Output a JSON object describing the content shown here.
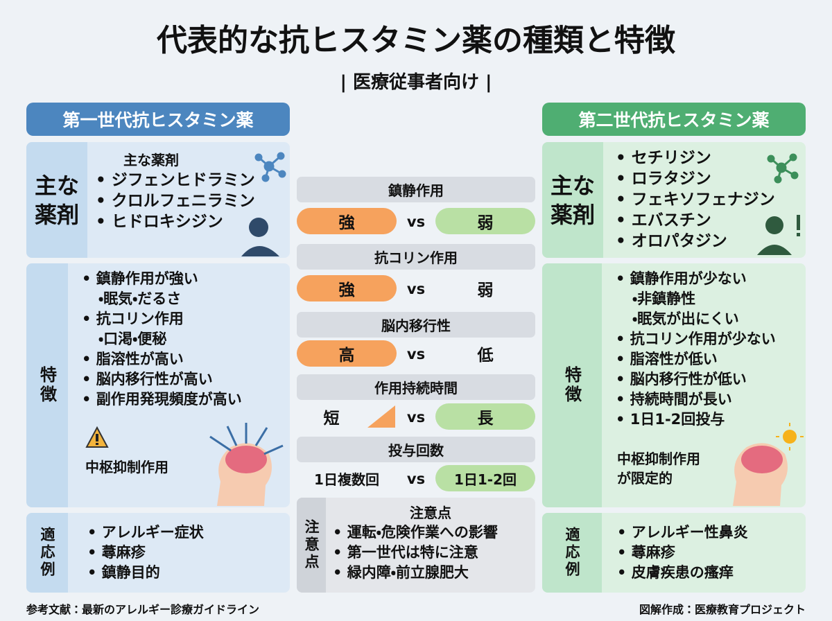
{
  "title": "代表的な抗ヒスタミン薬の種類と特徴",
  "subtitle": "| 医療従事者向け |",
  "left": {
    "header": "第一世代抗ヒスタミン薬",
    "drugs": {
      "label": [
        "主な",
        "薬剤"
      ],
      "heading": "主な薬剤",
      "items": [
        "ジフェンヒドラミン",
        "クロルフェニラミン",
        "ヒドロキシジン"
      ]
    },
    "features": {
      "label": "特徴",
      "items": [
        {
          "text": "鎮静作用が強い",
          "sub": [
            "眠気・だるさ"
          ]
        },
        {
          "text": "抗コリン作用",
          "sub": [
            "口渇・便秘"
          ]
        },
        {
          "text": "脂溶性が高い"
        },
        {
          "text": "脳内移行性が高い"
        },
        {
          "text": "副作用発現頻度が高い"
        }
      ],
      "note": [
        "中枢抑制作用"
      ]
    },
    "indications": {
      "label": "適応例",
      "items": [
        "アレルギー症状",
        "蕁麻疹",
        "鎮静目的"
      ]
    }
  },
  "right": {
    "header": "第二世代抗ヒスタミン薬",
    "drugs": {
      "label": [
        "主な",
        "薬剤"
      ],
      "items": [
        "セチリジン",
        "ロラタジン",
        "フェキソフェナジン",
        "エバスチン",
        "オロパタジン"
      ]
    },
    "features": {
      "label": "特徴",
      "items": [
        {
          "text": "鎮静作用が少ない",
          "sub": [
            "非鎮静性",
            "眠気が出にくい"
          ]
        },
        {
          "text": "抗コリン作用が少ない"
        },
        {
          "text": "脂溶性が低い"
        },
        {
          "text": "脳内移行性が低い"
        },
        {
          "text": "持続時間が長い"
        },
        {
          "text": "1日1-2回投与"
        }
      ],
      "note": [
        "中枢抑制作用",
        "が限定的"
      ]
    },
    "indications": {
      "label": "適応例",
      "items": [
        "アレルギー性鼻炎",
        "蕁麻疹",
        "皮膚疾患の瘙痒"
      ]
    }
  },
  "comparison": [
    {
      "title": "鎮静作用",
      "left": "強",
      "vs": "vs",
      "right": "弱"
    },
    {
      "title": "抗コリン作用",
      "left": "強",
      "vs": "vs",
      "right": "弱"
    },
    {
      "title": "脳内移行性",
      "left": "高",
      "vs": "vs",
      "right": "低"
    },
    {
      "title": "作用持続時間",
      "left": "短",
      "vs": "vs",
      "right": "長"
    },
    {
      "title": "投与回数",
      "left": "1日複数回",
      "vs": "vs",
      "right": "1日1-2回"
    }
  ],
  "caution": {
    "label": "注意点",
    "heading": "注意点",
    "items": [
      "運転・危険作業への影響",
      "第一世代は特に注意",
      "緑内障・前立腺肥大"
    ]
  },
  "footer": {
    "left": "参考文献：最新のアレルギー診療ガイドライン",
    "right": "図解作成：医療教育プロジェクト"
  }
}
